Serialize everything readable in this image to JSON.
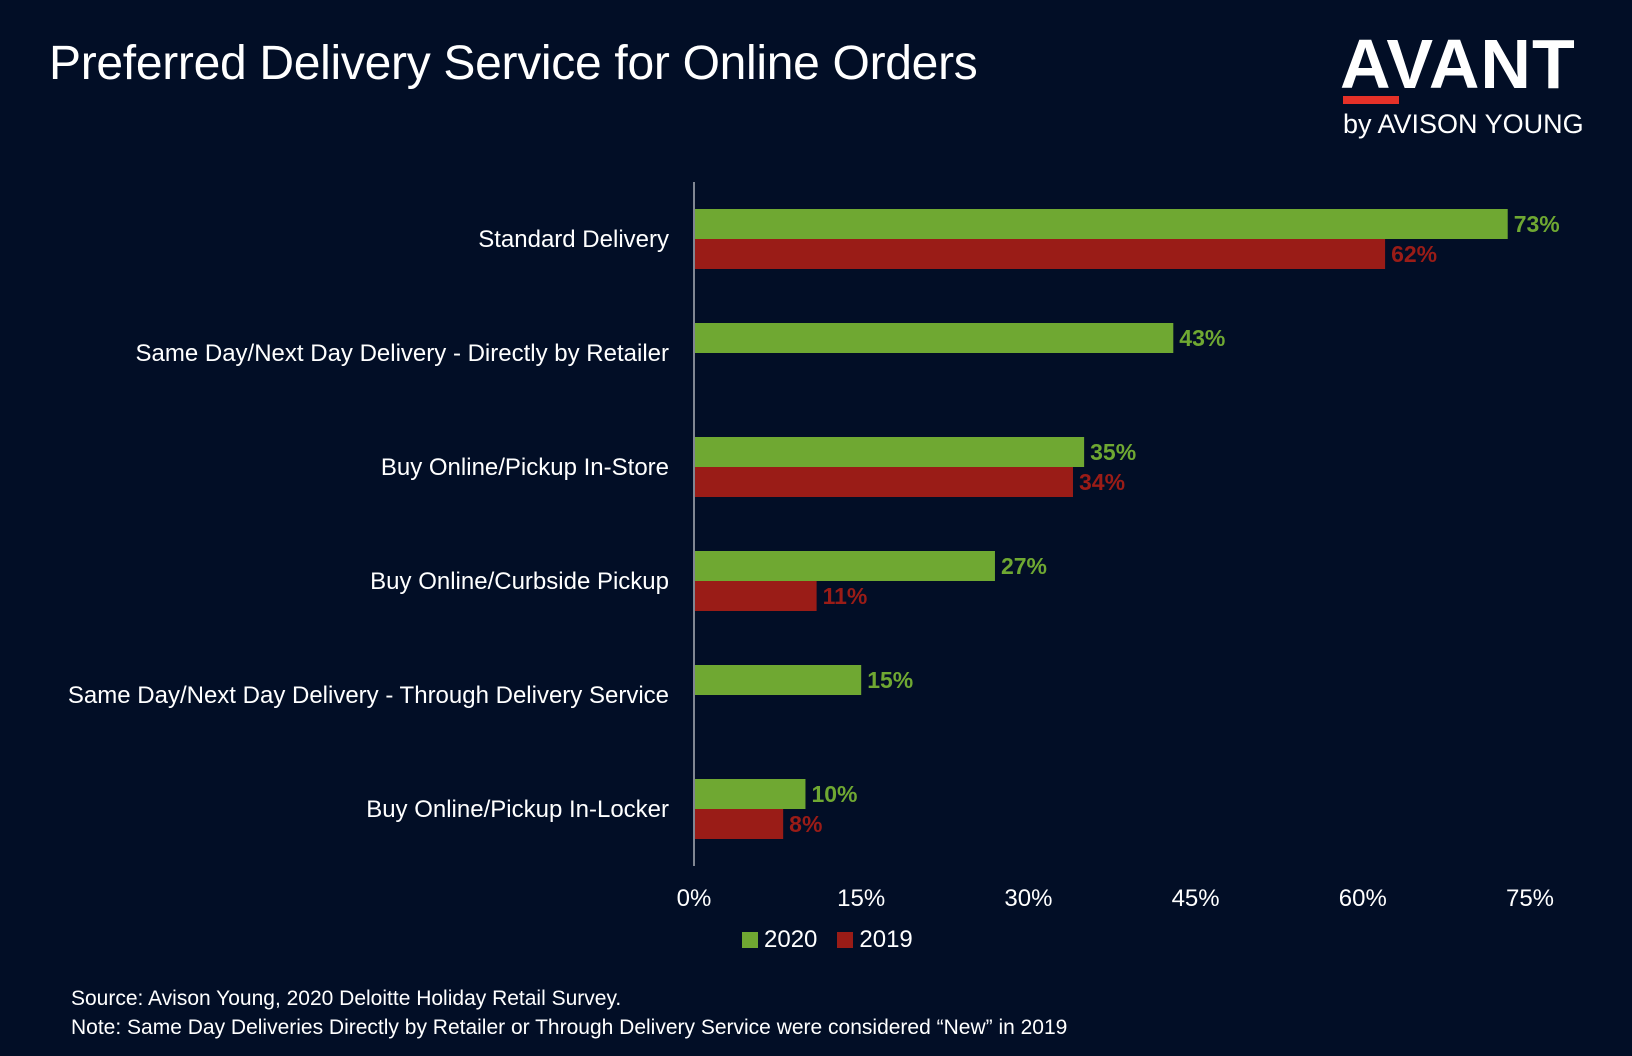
{
  "header": {
    "title": "Preferred Delivery Service for Online Orders"
  },
  "logo": {
    "wordmark": "AVANT",
    "tagline": "by AVISON YOUNG",
    "accent_color": "#e63128"
  },
  "chart_data": {
    "type": "bar",
    "orientation": "horizontal",
    "categories": [
      "Standard Delivery",
      "Same Day/Next Day Delivery - Directly by Retailer",
      "Buy Online/Pickup In-Store",
      "Buy Online/Curbside Pickup",
      "Same Day/Next Day Delivery - Through Delivery Service",
      "Buy Online/Pickup In-Locker"
    ],
    "series": [
      {
        "name": "2020",
        "color": "#6fa832",
        "values": [
          73,
          43,
          35,
          27,
          15,
          10
        ],
        "labels": [
          "73%",
          "43%",
          "35%",
          "27%",
          "15%",
          "10%"
        ]
      },
      {
        "name": "2019",
        "color": "#9a1c17",
        "values": [
          62,
          null,
          34,
          11,
          null,
          8
        ],
        "labels": [
          "62%",
          "",
          "34%",
          "11%",
          "",
          "8%"
        ]
      }
    ],
    "xlim": [
      0,
      75
    ],
    "xticks": [
      "0%",
      "15%",
      "30%",
      "45%",
      "60%",
      "75%"
    ],
    "xtick_values": [
      0,
      15,
      30,
      45,
      60,
      75
    ],
    "grid": false,
    "legend_position": "bottom"
  },
  "footer": {
    "source": "Source: Avison Young, 2020 Deloitte Holiday Retail Survey.",
    "note": "Note: Same Day Deliveries Directly by Retailer or Through Delivery Service were considered “New” in 2019"
  }
}
